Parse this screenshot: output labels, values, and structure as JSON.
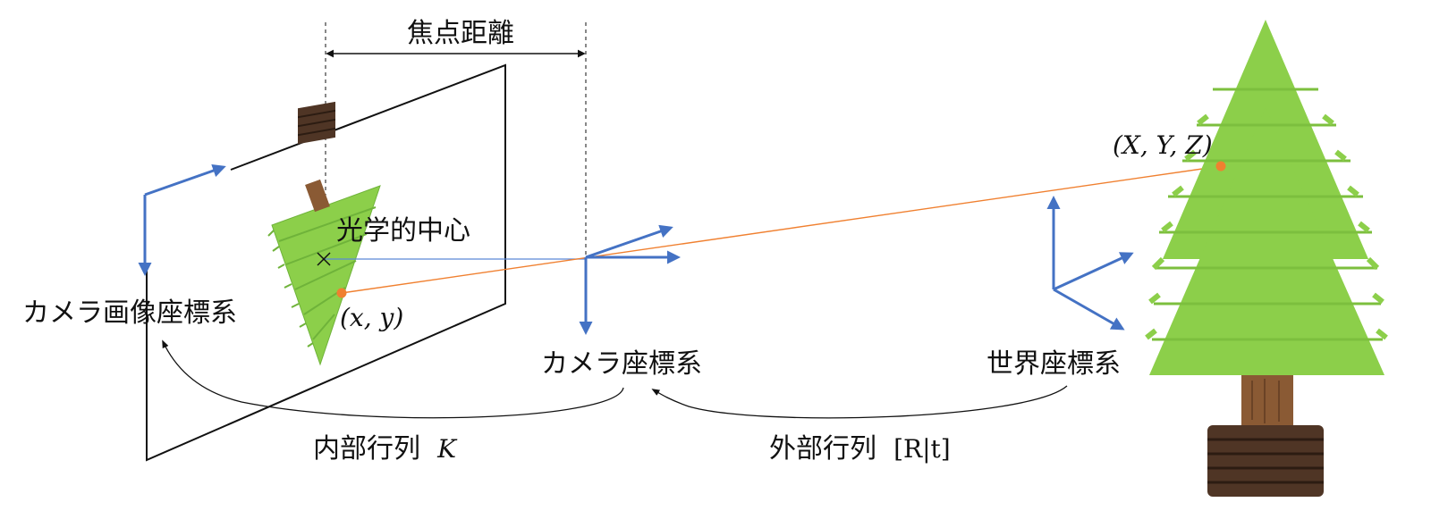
{
  "labels": {
    "focal_length": "焦点距離",
    "optical_center": "光学的中心",
    "camera_image_coords": "カメラ画像座標系",
    "camera_coords": "カメラ座標系",
    "world_coords": "世界座標系",
    "intrinsic_prefix": "内部行列",
    "intrinsic_symbol": "K",
    "extrinsic_prefix": "外部行列",
    "extrinsic_symbol": "[R|t]",
    "image_point": "(x, y)",
    "world_point": "(X, Y, Z)"
  },
  "icons": {
    "tree": "tree-icon",
    "projected_tree": "projected-tree-icon",
    "optical_center_marker": "cross-icon",
    "image_point_marker": "dot-icon",
    "world_point_marker": "dot-icon"
  },
  "colors": {
    "axis_blue": "#4472c4",
    "ray_orange": "#f08030",
    "optical_axis_blue": "#5a86d6",
    "tree_green": "#8ccf4a",
    "tree_dark_green": "#6fb33a",
    "trunk_brown": "#8a5a34",
    "pot_brown": "#4f3525",
    "line_black": "#111111"
  }
}
